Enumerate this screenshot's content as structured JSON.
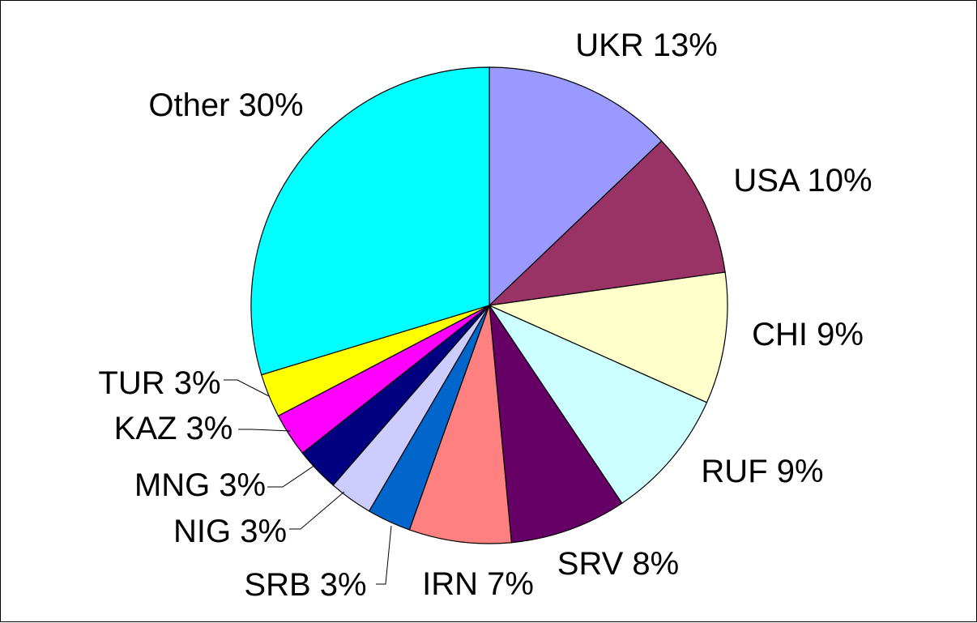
{
  "chart_data": {
    "type": "pie",
    "title": "",
    "legend": "none",
    "slices": [
      {
        "label": "UKR",
        "value": 13,
        "display": "UKR 13%",
        "color": "#9999FF"
      },
      {
        "label": "USA",
        "value": 10,
        "display": "USA 10%",
        "color": "#993366"
      },
      {
        "label": "CHI",
        "value": 9,
        "display": "CHI 9%",
        "color": "#FFFFCC"
      },
      {
        "label": "RUF",
        "value": 9,
        "display": "RUF 9%",
        "color": "#CCFFFF"
      },
      {
        "label": "SRV",
        "value": 8,
        "display": "SRV 8%",
        "color": "#660066"
      },
      {
        "label": "IRN",
        "value": 7,
        "display": "IRN 7%",
        "color": "#FF8080"
      },
      {
        "label": "SRB",
        "value": 3,
        "display": "SRB 3%",
        "color": "#0066CC"
      },
      {
        "label": "NIG",
        "value": 3,
        "display": "NIG 3%",
        "color": "#CCCCFF"
      },
      {
        "label": "MNG",
        "value": 3,
        "display": "MNG 3%",
        "color": "#000080"
      },
      {
        "label": "KAZ",
        "value": 3,
        "display": "KAZ 3%",
        "color": "#FF00FF"
      },
      {
        "label": "TUR",
        "value": 3,
        "display": "TUR 3%",
        "color": "#FFFF00"
      },
      {
        "label": "Other",
        "value": 30,
        "display": "Other 30%",
        "color": "#00FFFF"
      }
    ]
  }
}
